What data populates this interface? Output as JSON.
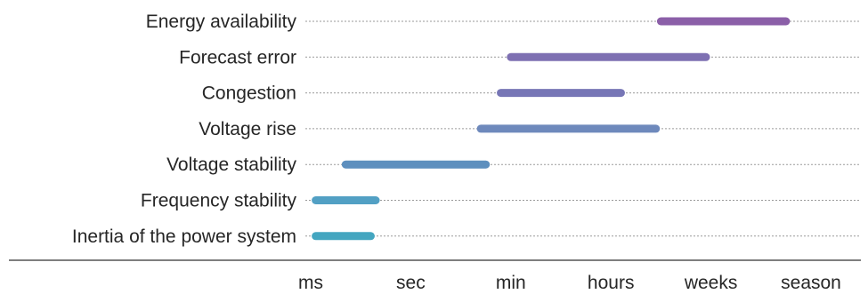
{
  "chart_data": {
    "type": "timeline-range",
    "title": "",
    "xlabel": "",
    "ylabel": "",
    "x_scale": "ordinal-timescale",
    "x_ticks": [
      "ms",
      "sec",
      "min",
      "hours",
      "weeks",
      "season"
    ],
    "xlim": [
      0,
      5
    ],
    "grid": "dashed-row-guides",
    "legend": "none",
    "series": [
      {
        "label": "Energy availability",
        "start": 3.5,
        "end": 4.75,
        "color": "#8b5fa8"
      },
      {
        "label": "Forecast error",
        "start": 2.0,
        "end": 3.95,
        "color": "#7e70b2"
      },
      {
        "label": "Congestion",
        "start": 1.9,
        "end": 3.1,
        "color": "#7776b6"
      },
      {
        "label": "Voltage rise",
        "start": 1.7,
        "end": 3.45,
        "color": "#6e89bc"
      },
      {
        "label": "Voltage stability",
        "start": 0.35,
        "end": 1.75,
        "color": "#5d8fbe"
      },
      {
        "label": "Frequency stability",
        "start": 0.05,
        "end": 0.65,
        "color": "#52a0c4"
      },
      {
        "label": "Inertia of the power system",
        "start": 0.05,
        "end": 0.6,
        "color": "#44a6c0"
      }
    ]
  }
}
